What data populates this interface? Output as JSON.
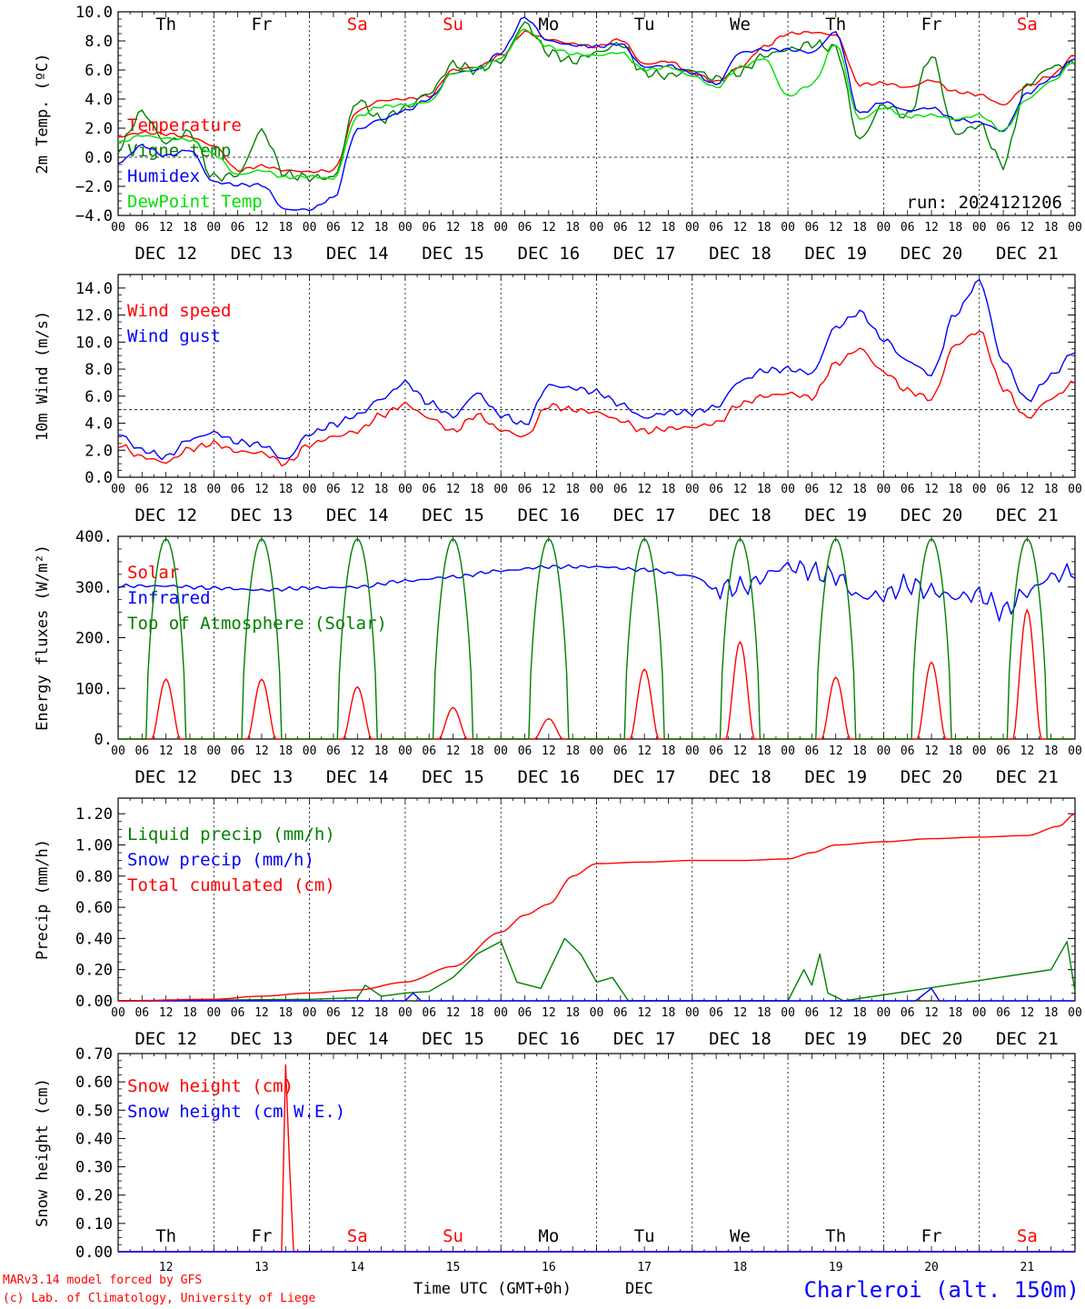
{
  "footer": {
    "model_line1": "MARv3.14 model forced by GFS",
    "model_line2": "(c) Lab. of Climatology, University of Liege",
    "xlabel": "Time UTC (GMT+0h)",
    "month": "DEC",
    "station": "Charleroi (alt. 150m)"
  },
  "days": [
    {
      "weekday": "Th",
      "date": "12",
      "label": "DEC 12",
      "weekend": false
    },
    {
      "weekday": "Fr",
      "date": "13",
      "label": "DEC 13",
      "weekend": false
    },
    {
      "weekday": "Sa",
      "date": "14",
      "label": "DEC 14",
      "weekend": true
    },
    {
      "weekday": "Su",
      "date": "15",
      "label": "DEC 15",
      "weekend": true
    },
    {
      "weekday": "Mo",
      "date": "16",
      "label": "DEC 16",
      "weekend": false
    },
    {
      "weekday": "Tu",
      "date": "17",
      "label": "DEC 17",
      "weekend": false
    },
    {
      "weekday": "We",
      "date": "18",
      "label": "DEC 18",
      "weekend": false
    },
    {
      "weekday": "Th",
      "date": "19",
      "label": "DEC 19",
      "weekend": false
    },
    {
      "weekday": "Fr",
      "date": "20",
      "label": "DEC 20",
      "weekend": false
    },
    {
      "weekday": "Sa",
      "date": "21",
      "label": "DEC 21",
      "weekend": true
    }
  ],
  "hour_ticks": [
    "00",
    "06",
    "12",
    "18"
  ],
  "last_hour_tick": "00",
  "colors": {
    "red": "#ff0000",
    "green": "#008000",
    "blue": "#0000ff",
    "lightgreen": "#00e000",
    "weekend": "#ff0000",
    "weekday": "#000000",
    "station": "#0000ff"
  },
  "chart_data": [
    {
      "type": "line",
      "ylabel": "2m Temp. (ºC)",
      "ylim": [
        -4,
        10
      ],
      "yticks": [
        "−4.0",
        "−2.0",
        "0.0",
        "2.0",
        "4.0",
        "6.0",
        "8.0",
        "10.0"
      ],
      "ytick_values": [
        -4,
        -2,
        0,
        2,
        4,
        6,
        8,
        10
      ],
      "reference_line": 0,
      "weekday_labels": true,
      "annotation": "run: 2024121206",
      "x_hours": [
        0,
        6,
        12,
        18,
        24,
        30,
        36,
        42,
        48,
        54,
        60,
        66,
        72,
        78,
        84,
        90,
        96,
        102,
        108,
        114,
        120,
        126,
        132,
        138,
        144,
        150,
        156,
        162,
        168,
        174,
        180,
        186,
        192,
        198,
        204,
        210,
        216,
        222,
        228,
        234,
        240
      ],
      "series": [
        {
          "name": "Temperature",
          "color": "red",
          "values": [
            1.4,
            1.7,
            1.6,
            1.4,
            0.8,
            -0.9,
            -0.6,
            -0.9,
            -1.0,
            -0.9,
            3.2,
            3.9,
            4.0,
            4.2,
            6.0,
            6.2,
            7.0,
            8.6,
            8.1,
            7.8,
            7.6,
            8.1,
            6.4,
            6.6,
            5.8,
            5.2,
            6.2,
            7.6,
            8.5,
            8.6,
            8.4,
            5.0,
            5.1,
            4.8,
            5.3,
            4.5,
            4.3,
            3.6,
            4.9,
            5.6,
            7.0
          ]
        },
        {
          "name": "Vigne temp",
          "color": "green",
          "values": [
            0.6,
            3.1,
            1.0,
            1.7,
            -1.4,
            -1.2,
            1.8,
            -1.2,
            -1.4,
            -1.4,
            3.9,
            2.6,
            3.4,
            4.4,
            6.4,
            6.0,
            6.6,
            9.2,
            7.2,
            6.6,
            7.2,
            7.8,
            5.8,
            5.6,
            6.0,
            5.4,
            5.8,
            7.0,
            7.4,
            7.8,
            7.5,
            1.2,
            3.6,
            2.8,
            7.0,
            1.6,
            2.2,
            -0.5,
            5.0,
            6.2,
            6.4
          ]
        },
        {
          "name": "Humidex",
          "color": "blue",
          "values": [
            -0.4,
            0.8,
            0.1,
            0.5,
            -1.7,
            -1.9,
            -1.9,
            -3.6,
            -3.6,
            -2.8,
            1.9,
            2.6,
            3.2,
            4.0,
            5.8,
            6.0,
            7.2,
            9.6,
            8.0,
            7.7,
            7.6,
            7.8,
            6.2,
            6.3,
            5.8,
            5.0,
            7.2,
            7.4,
            7.4,
            7.2,
            8.6,
            3.0,
            3.8,
            3.2,
            3.4,
            2.6,
            2.4,
            1.8,
            4.4,
            5.4,
            6.8
          ]
        },
        {
          "name": "DewPoint Temp",
          "color": "lightgreen",
          "values": [
            1.0,
            1.5,
            1.3,
            1.2,
            0.2,
            -1.2,
            -0.9,
            -1.4,
            -1.3,
            -1.5,
            2.8,
            3.5,
            3.6,
            3.8,
            5.8,
            6.1,
            6.8,
            8.8,
            7.6,
            7.1,
            7.0,
            7.2,
            6.0,
            6.2,
            5.6,
            4.8,
            6.2,
            6.8,
            4.2,
            5.0,
            7.8,
            2.6,
            3.4,
            2.8,
            2.9,
            2.6,
            2.9,
            1.8,
            4.0,
            5.2,
            6.6
          ]
        }
      ]
    },
    {
      "type": "line",
      "ylabel": "10m Wind (m/s)",
      "ylim": [
        0,
        15
      ],
      "yticks": [
        "0.0",
        "2.0",
        "4.0",
        "6.0",
        "8.0",
        "10.0",
        "12.0",
        "14.0"
      ],
      "ytick_values": [
        0,
        2,
        4,
        6,
        8,
        10,
        12,
        14
      ],
      "reference_line": 5,
      "x_hours": [
        0,
        6,
        12,
        18,
        24,
        30,
        36,
        42,
        48,
        54,
        60,
        66,
        72,
        78,
        84,
        90,
        96,
        102,
        108,
        114,
        120,
        126,
        132,
        138,
        144,
        150,
        156,
        162,
        168,
        174,
        180,
        186,
        192,
        198,
        204,
        210,
        216,
        222,
        228,
        234,
        240
      ],
      "series": [
        {
          "name": "Wind speed",
          "color": "red",
          "values": [
            2.4,
            1.5,
            1.1,
            2.1,
            2.5,
            1.9,
            1.8,
            1.0,
            2.4,
            3.0,
            3.4,
            4.6,
            5.4,
            4.4,
            3.4,
            4.6,
            3.5,
            3.0,
            5.3,
            5.0,
            4.8,
            4.2,
            3.4,
            3.6,
            3.7,
            4.0,
            5.4,
            6.0,
            6.2,
            5.9,
            8.4,
            9.5,
            7.8,
            6.4,
            5.8,
            9.8,
            10.8,
            6.6,
            4.4,
            5.8,
            7.0
          ]
        },
        {
          "name": "Wind gust",
          "color": "blue",
          "values": [
            3.2,
            2.0,
            1.5,
            2.8,
            3.3,
            2.6,
            2.4,
            1.3,
            3.2,
            3.9,
            4.6,
            5.8,
            7.0,
            5.5,
            4.5,
            6.2,
            4.6,
            3.9,
            6.8,
            6.6,
            6.3,
            5.4,
            4.4,
            4.8,
            4.8,
            5.2,
            7.1,
            7.9,
            8.0,
            7.7,
            11.1,
            12.2,
            10.2,
            8.6,
            7.6,
            12.1,
            14.5,
            8.6,
            5.7,
            7.5,
            9.3
          ]
        }
      ]
    },
    {
      "type": "line",
      "ylabel": "Energy fluxes (W/m²)",
      "ylim": [
        0,
        400
      ],
      "yticks": [
        "0.",
        "100.",
        "200.",
        "300.",
        "400."
      ],
      "ytick_values": [
        0,
        100,
        200,
        300,
        400
      ],
      "series": [
        {
          "name": "Solar",
          "color": "red",
          "daily_peaks": [
            118,
            118,
            103,
            62,
            40,
            138,
            192,
            122,
            152,
            255
          ]
        },
        {
          "name": "Infrared",
          "color": "blue",
          "x_hours": [
            0,
            12,
            24,
            36,
            48,
            60,
            72,
            84,
            96,
            108,
            120,
            132,
            144,
            150,
            156,
            168,
            180,
            186,
            192,
            198,
            204,
            210,
            216,
            222,
            228,
            234,
            240
          ],
          "values": [
            302,
            302,
            298,
            294,
            298,
            300,
            312,
            320,
            332,
            340,
            340,
            334,
            322,
            296,
            300,
            340,
            322,
            280,
            284,
            305,
            292,
            280,
            285,
            252,
            290,
            320,
            332
          ]
        },
        {
          "name": "Top of Atmosphere (Solar)",
          "color": "green",
          "daily_peak": 395
        }
      ]
    },
    {
      "type": "line",
      "ylabel": "Precip (mm/h)",
      "ylim": [
        0,
        1.3
      ],
      "yticks": [
        "0.00",
        "0.20",
        "0.40",
        "0.60",
        "0.80",
        "1.00",
        "1.20"
      ],
      "ytick_values": [
        0,
        0.2,
        0.4,
        0.6,
        0.8,
        1.0,
        1.2
      ],
      "series": [
        {
          "name": "Liquid precip (mm/h)",
          "color": "green",
          "x_hours": [
            0,
            48,
            60,
            62,
            66,
            72,
            78,
            84,
            90,
            96,
            100,
            106,
            112,
            116,
            120,
            124,
            128,
            168,
            172,
            174,
            176,
            178,
            182,
            234,
            238,
            240
          ],
          "values": [
            0,
            0.01,
            0.02,
            0.1,
            0.03,
            0.05,
            0.06,
            0.15,
            0.3,
            0.38,
            0.12,
            0.08,
            0.4,
            0.3,
            0.12,
            0.15,
            0,
            0,
            0.2,
            0.1,
            0.3,
            0.05,
            0,
            0.2,
            0.38,
            0.06
          ]
        },
        {
          "name": "Snow precip (mm/h)",
          "color": "blue",
          "x_hours": [
            0,
            72,
            74,
            76,
            200,
            204,
            206,
            240
          ],
          "values": [
            0,
            0,
            0.05,
            0,
            0,
            0.08,
            0,
            0
          ]
        },
        {
          "name": "Total cumulated (cm)",
          "color": "red",
          "x_hours": [
            0,
            24,
            36,
            48,
            60,
            72,
            84,
            96,
            102,
            108,
            114,
            120,
            132,
            144,
            156,
            168,
            174,
            180,
            192,
            204,
            216,
            228,
            236,
            240
          ],
          "values": [
            0.0,
            0.01,
            0.03,
            0.05,
            0.07,
            0.12,
            0.22,
            0.44,
            0.55,
            0.62,
            0.8,
            0.88,
            0.89,
            0.9,
            0.9,
            0.91,
            0.95,
            1.0,
            1.02,
            1.04,
            1.05,
            1.06,
            1.12,
            1.2
          ]
        }
      ]
    },
    {
      "type": "line",
      "ylabel": "Snow height (cm)",
      "ylim": [
        0,
        0.7
      ],
      "yticks": [
        "0.00",
        "0.10",
        "0.20",
        "0.30",
        "0.40",
        "0.50",
        "0.60",
        "0.70"
      ],
      "ytick_values": [
        0,
        0.1,
        0.2,
        0.3,
        0.4,
        0.5,
        0.6,
        0.7
      ],
      "weekday_labels": true,
      "series": [
        {
          "name": "Snow height (cm)",
          "color": "red",
          "x_hours": [
            0,
            41,
            42,
            43,
            44,
            240
          ],
          "values": [
            0,
            0,
            0.66,
            0.3,
            0,
            0
          ]
        },
        {
          "name": "Snow height (cm W.E.)",
          "color": "blue",
          "x_hours": [
            0,
            240
          ],
          "values": [
            0,
            0
          ]
        }
      ]
    }
  ]
}
